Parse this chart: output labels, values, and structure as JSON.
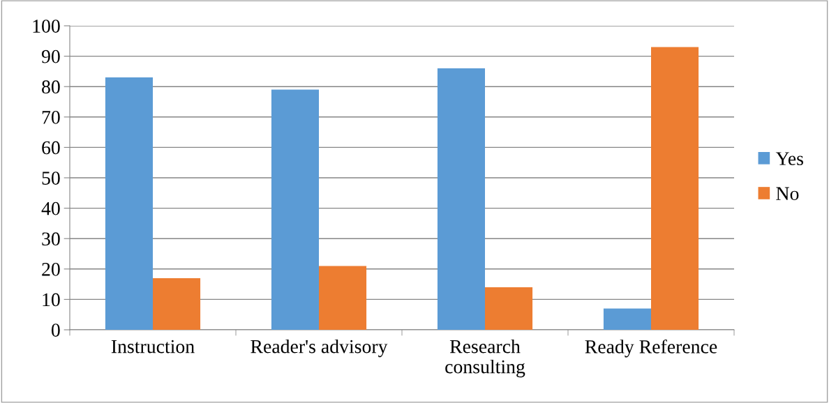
{
  "chart_data": {
    "type": "bar",
    "categories": [
      "Instruction",
      "Reader's advisory",
      "Research\nconsulting",
      "Ready Reference"
    ],
    "series": [
      {
        "name": "Yes",
        "color": "#5b9bd5",
        "values": [
          83,
          79,
          86,
          7
        ]
      },
      {
        "name": "No",
        "color": "#ed7d31",
        "values": [
          17,
          21,
          14,
          93
        ]
      }
    ],
    "ylim": [
      0,
      100
    ],
    "yticks": [
      0,
      10,
      20,
      30,
      40,
      50,
      60,
      70,
      80,
      90,
      100
    ],
    "grid": "y",
    "legend": "right"
  }
}
